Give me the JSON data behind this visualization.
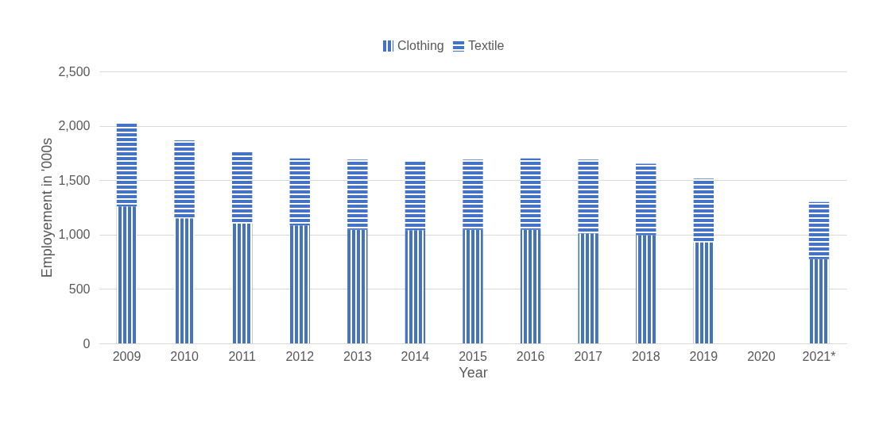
{
  "chart_data": {
    "type": "bar",
    "stacked": true,
    "xlabel": "Year",
    "ylabel": "Employement in '000s",
    "categories": [
      "2009",
      "2010",
      "2011",
      "2012",
      "2013",
      "2014",
      "2015",
      "2016",
      "2017",
      "2018",
      "2019",
      "2020",
      "2021*"
    ],
    "series": [
      {
        "name": "Clothing",
        "color": "#4472c4",
        "values": [
          1260,
          1150,
          1100,
          1085,
          1045,
          1040,
          1045,
          1045,
          1010,
          995,
          930,
          null,
          775
        ]
      },
      {
        "name": "Textile",
        "color": "#4472c4",
        "values": [
          770,
          715,
          660,
          615,
          645,
          640,
          645,
          655,
          680,
          655,
          585,
          null,
          525
        ]
      }
    ],
    "ylim": [
      0,
      2500
    ],
    "yticks": [
      0,
      {
        "value": 500,
        "label": "500"
      },
      {
        "value": 1000,
        "label": "1,000"
      },
      {
        "value": 1500,
        "label": "1,500"
      },
      {
        "value": 2000,
        "label": "2,000"
      },
      {
        "value": 2500,
        "label": "2,500"
      }
    ],
    "grid": "y",
    "legend": "top"
  }
}
